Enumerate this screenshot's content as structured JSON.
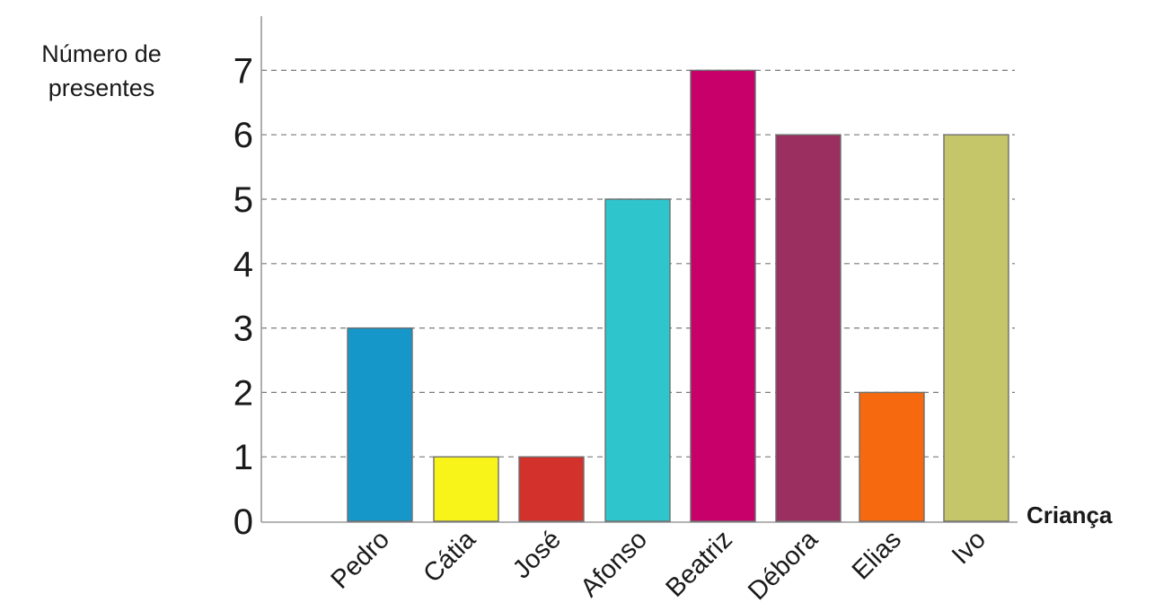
{
  "chart_data": {
    "type": "bar",
    "ylabel_lines": [
      "Número de",
      "presentes"
    ],
    "xlabel": "Criança",
    "categories": [
      "Pedro",
      "Cátia",
      "José",
      "Afonso",
      "Beatriz",
      "Débora",
      "Elias",
      "Ivo"
    ],
    "values": [
      3,
      1,
      1,
      5,
      7,
      6,
      2,
      6
    ],
    "colors": [
      "#1597c9",
      "#f8f41a",
      "#d3312c",
      "#2ec6cc",
      "#c8006a",
      "#9a2f60",
      "#f6690f",
      "#c5c56a"
    ],
    "yticks": [
      0,
      1,
      2,
      3,
      4,
      5,
      6,
      7
    ],
    "ylim": [
      0,
      7.7
    ],
    "grid": true
  }
}
